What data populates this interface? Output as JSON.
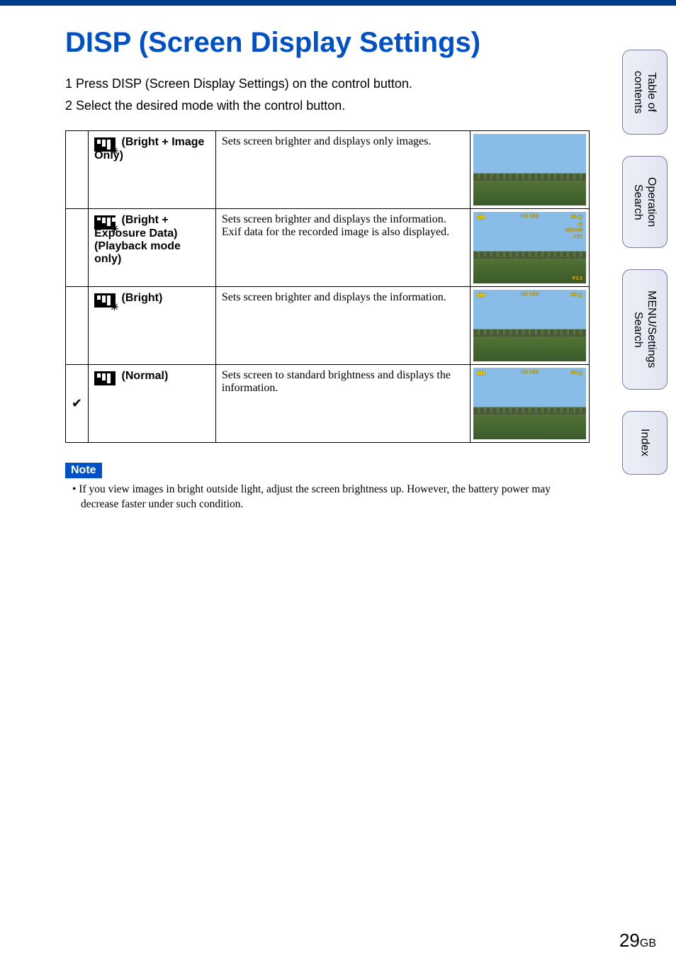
{
  "title": "DISP (Screen Display Settings)",
  "steps": {
    "s1": "1  Press DISP (Screen Display Settings) on the control button.",
    "s2": "2  Select the desired mode with the control button."
  },
  "rows": [
    {
      "check": "",
      "label": "(Bright + Image Only)",
      "desc": "Sets screen brighter and displays only images.",
      "overlay": "none"
    },
    {
      "check": "",
      "label": "(Bright + Exposure Data) (Playback mode only)",
      "desc": "Sets screen brighter and displays the information.\nExif data for the recorded image is also displayed.",
      "overlay": "exif"
    },
    {
      "check": "",
      "label": "(Bright)",
      "desc": "Sets screen brighter and displays the information.",
      "overlay": "info"
    },
    {
      "check": "✔",
      "label": "(Normal)",
      "desc": "Sets screen to standard brightness and displays the information.",
      "overlay": "info"
    }
  ],
  "overlay_text": {
    "battery": "▮▮▮",
    "size": "4:3 10M",
    "count": "96 ▢",
    "iso": "ISO400",
    "ev": "+EV",
    "f": "F3.5"
  },
  "note_label": "Note",
  "note_text": "•  If you view images in bright outside light, adjust the screen brightness up. However, the battery power may decrease faster under such condition.",
  "tabs": {
    "t1": "Table of contents",
    "t2": "Operation Search",
    "t3": "MENU/Settings Search",
    "t4": "Index"
  },
  "page_number": "29",
  "page_suffix": "GB",
  "colors": {
    "title": "#0050c8",
    "topbar": "#003a8c",
    "note_bg": "#0050c8",
    "tab_border": "#7a7aa0"
  },
  "icon_bars": [
    [
      "6",
      "10",
      "14"
    ],
    [
      "4",
      "8",
      "12",
      "6",
      "10"
    ],
    [
      "6",
      "10",
      "14"
    ],
    [
      "6",
      "10",
      "14"
    ]
  ]
}
